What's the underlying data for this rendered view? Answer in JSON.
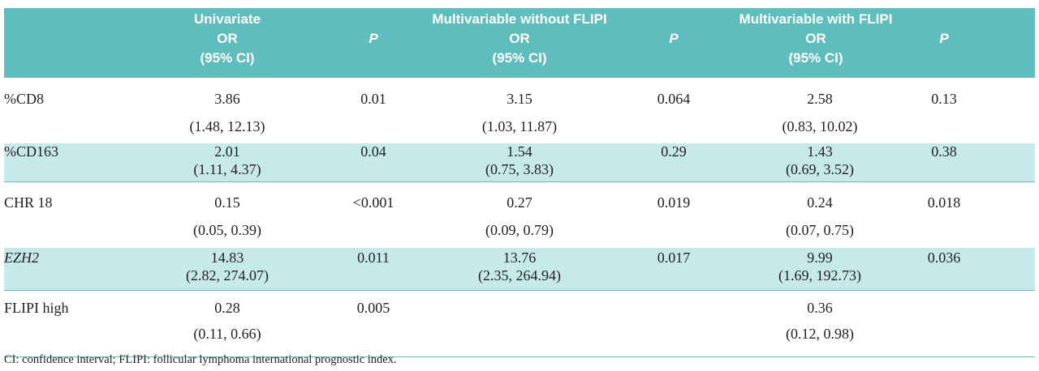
{
  "header": {
    "groups": [
      "Univariate",
      "Multivariable without FLIPI",
      "Multivariable with FLIPI"
    ],
    "or_label": "OR",
    "ci_label": "(95% CI)",
    "p_label": "P"
  },
  "rows": [
    {
      "label": "%CD8",
      "italic": false,
      "uni_or": "3.86",
      "uni_ci": "(1.48, 12.13)",
      "uni_p": "0.01",
      "mv_or": "3.15",
      "mv_ci": "(1.03, 11.87)",
      "mv_p": "0.064",
      "mvf_or": "2.58",
      "mvf_ci": "(0.83, 10.02)",
      "mvf_p": "0.13"
    },
    {
      "label": "%CD163",
      "italic": false,
      "uni_or": "2.01",
      "uni_ci": "(1.11, 4.37)",
      "uni_p": "0.04",
      "mv_or": "1.54",
      "mv_ci": "(0.75, 3.83)",
      "mv_p": "0.29",
      "mvf_or": "1.43",
      "mvf_ci": "(0.69, 3.52)",
      "mvf_p": "0.38"
    },
    {
      "label": "CHR 18",
      "italic": false,
      "uni_or": "0.15",
      "uni_ci": "(0.05, 0.39)",
      "uni_p": "<0.001",
      "mv_or": "0.27",
      "mv_ci": "(0.09, 0.79)",
      "mv_p": "0.019",
      "mvf_or": "0.24",
      "mvf_ci": "(0.07, 0.75)",
      "mvf_p": "0.018"
    },
    {
      "label": "EZH2",
      "italic": true,
      "uni_or": "14.83",
      "uni_ci": "(2.82, 274.07)",
      "uni_p": "0.011",
      "mv_or": "13.76",
      "mv_ci": "(2.35, 264.94)",
      "mv_p": "0.017",
      "mvf_or": "9.99",
      "mvf_ci": "(1.69, 192.73)",
      "mvf_p": "0.036"
    },
    {
      "label": "FLIPI high",
      "italic": false,
      "uni_or": "0.28",
      "uni_ci": "(0.11, 0.66)",
      "uni_p": "0.005",
      "mv_or": "",
      "mv_ci": "",
      "mv_p": "",
      "mvf_or": "0.36",
      "mvf_ci": "(0.12, 0.98)",
      "mvf_p": ""
    }
  ],
  "footnote": "CI: confidence interval; FLIPI: follicular lymphoma international prognostic index.",
  "colors": {
    "header_bg": "#5fbdbd",
    "stripe_bg": "#c6e9ea"
  }
}
